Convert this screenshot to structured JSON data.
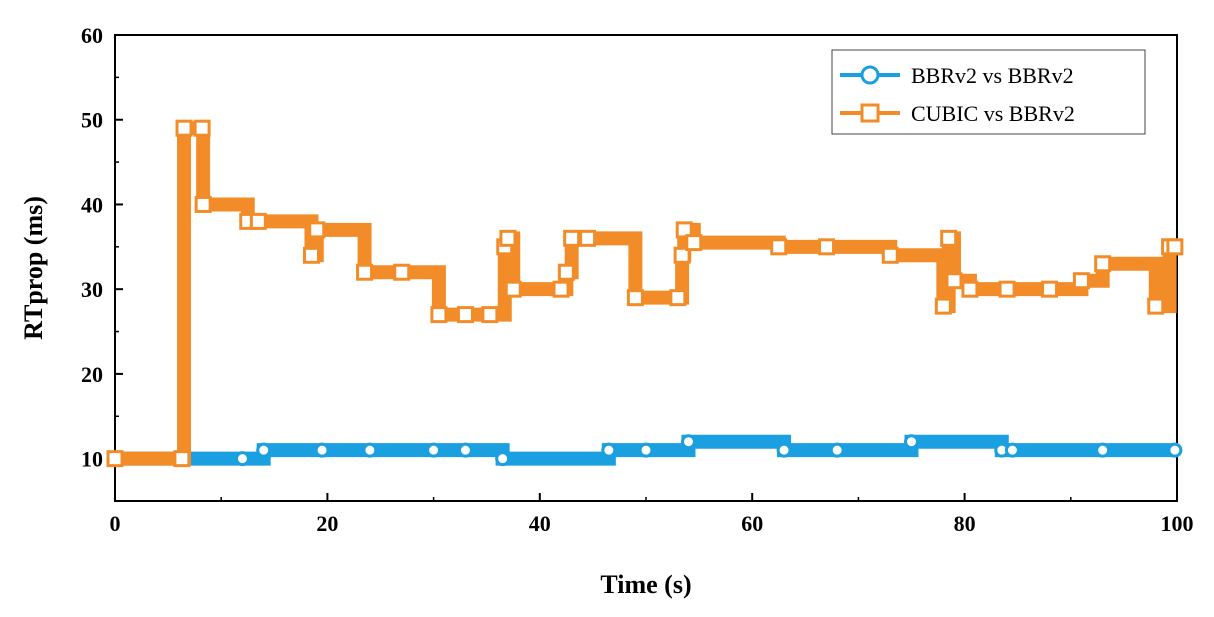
{
  "chart_data": {
    "type": "line",
    "xlabel": "Time (s)",
    "ylabel": "RTprop (ms)",
    "xlim": [
      0,
      100
    ],
    "ylim": [
      5,
      60
    ],
    "xticks": [
      0,
      20,
      40,
      60,
      80,
      100
    ],
    "yticks": [
      10,
      20,
      30,
      40,
      50,
      60
    ],
    "grid": false,
    "legend_position": "top-right",
    "series": [
      {
        "name": "BBRv2 vs BBRv2",
        "color": "#1a9fe0",
        "marker": "circle",
        "x": [
          0,
          6.5,
          12,
          14,
          19.5,
          24,
          30,
          33,
          36.5,
          46.5,
          50,
          54,
          63,
          68,
          75,
          83.5,
          84.5,
          93,
          99.8
        ],
        "y": [
          10,
          10,
          10,
          11,
          11,
          11,
          11,
          11,
          10,
          11,
          11,
          12,
          11,
          11,
          12,
          11,
          11,
          11,
          11
        ]
      },
      {
        "name": "CUBIC vs BBRv2",
        "color": "#f28c28",
        "marker": "square",
        "x": [
          0,
          6.3,
          6.5,
          8.2,
          8.3,
          12.5,
          13.5,
          18.5,
          19,
          23.5,
          27,
          30.5,
          33,
          35.3,
          36.7,
          37,
          37.5,
          42,
          42.5,
          43,
          44.5,
          49,
          53,
          53.4,
          53.6,
          54.5,
          62.5,
          67,
          73,
          78,
          78.5,
          79,
          80.5,
          84,
          88,
          91,
          93,
          98,
          99.3,
          99.8
        ],
        "y": [
          10,
          10,
          49,
          49,
          40,
          38,
          38,
          34,
          37,
          32,
          32,
          27,
          27,
          27,
          35,
          36,
          30,
          30,
          32,
          36,
          36,
          29,
          29,
          34,
          37,
          35.5,
          35,
          35,
          34,
          28,
          36,
          31,
          30,
          30,
          30,
          31,
          33,
          28,
          35,
          35
        ]
      }
    ]
  }
}
